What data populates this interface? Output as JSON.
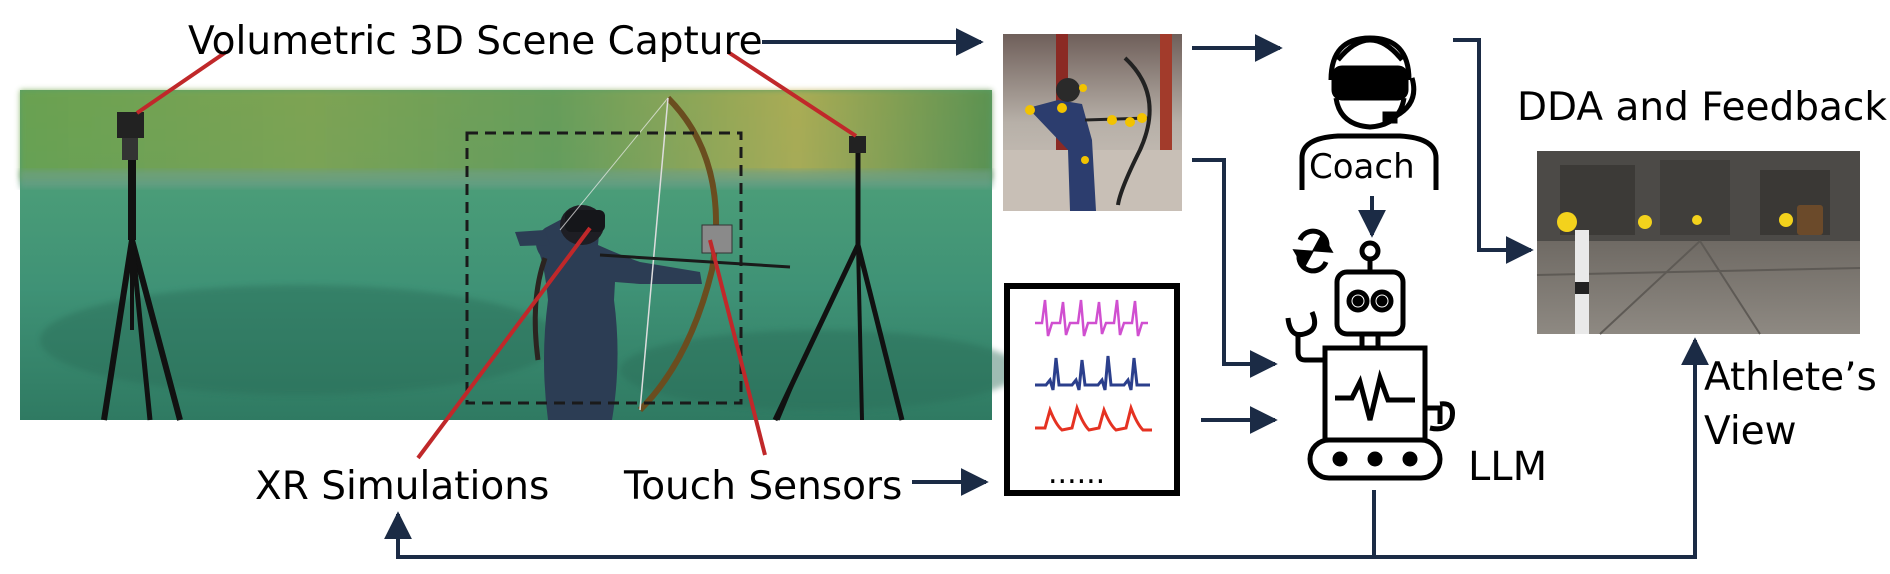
{
  "labels": {
    "capture": "Volumetric 3D Scene Capture",
    "dda": "DDA and Feedback",
    "coach": "Coach",
    "llm": "LLM",
    "athlete_line1": "Athlete’s",
    "athlete_line2": "View",
    "xr": "XR Simulations",
    "touch": "Touch Sensors",
    "ellipsis": "......"
  },
  "icons": {
    "coach": "coach-vr-headset-icon",
    "robot": "llm-robot-icon",
    "refresh": "refresh-arrows-icon"
  },
  "colors": {
    "arrow": "#1b2b45",
    "pointer_lines": "#c0282a",
    "signal_1": "#d04fd0",
    "signal_2": "#2b3f8c",
    "signal_3": "#e53222",
    "field_green": "#3f8f6e"
  }
}
